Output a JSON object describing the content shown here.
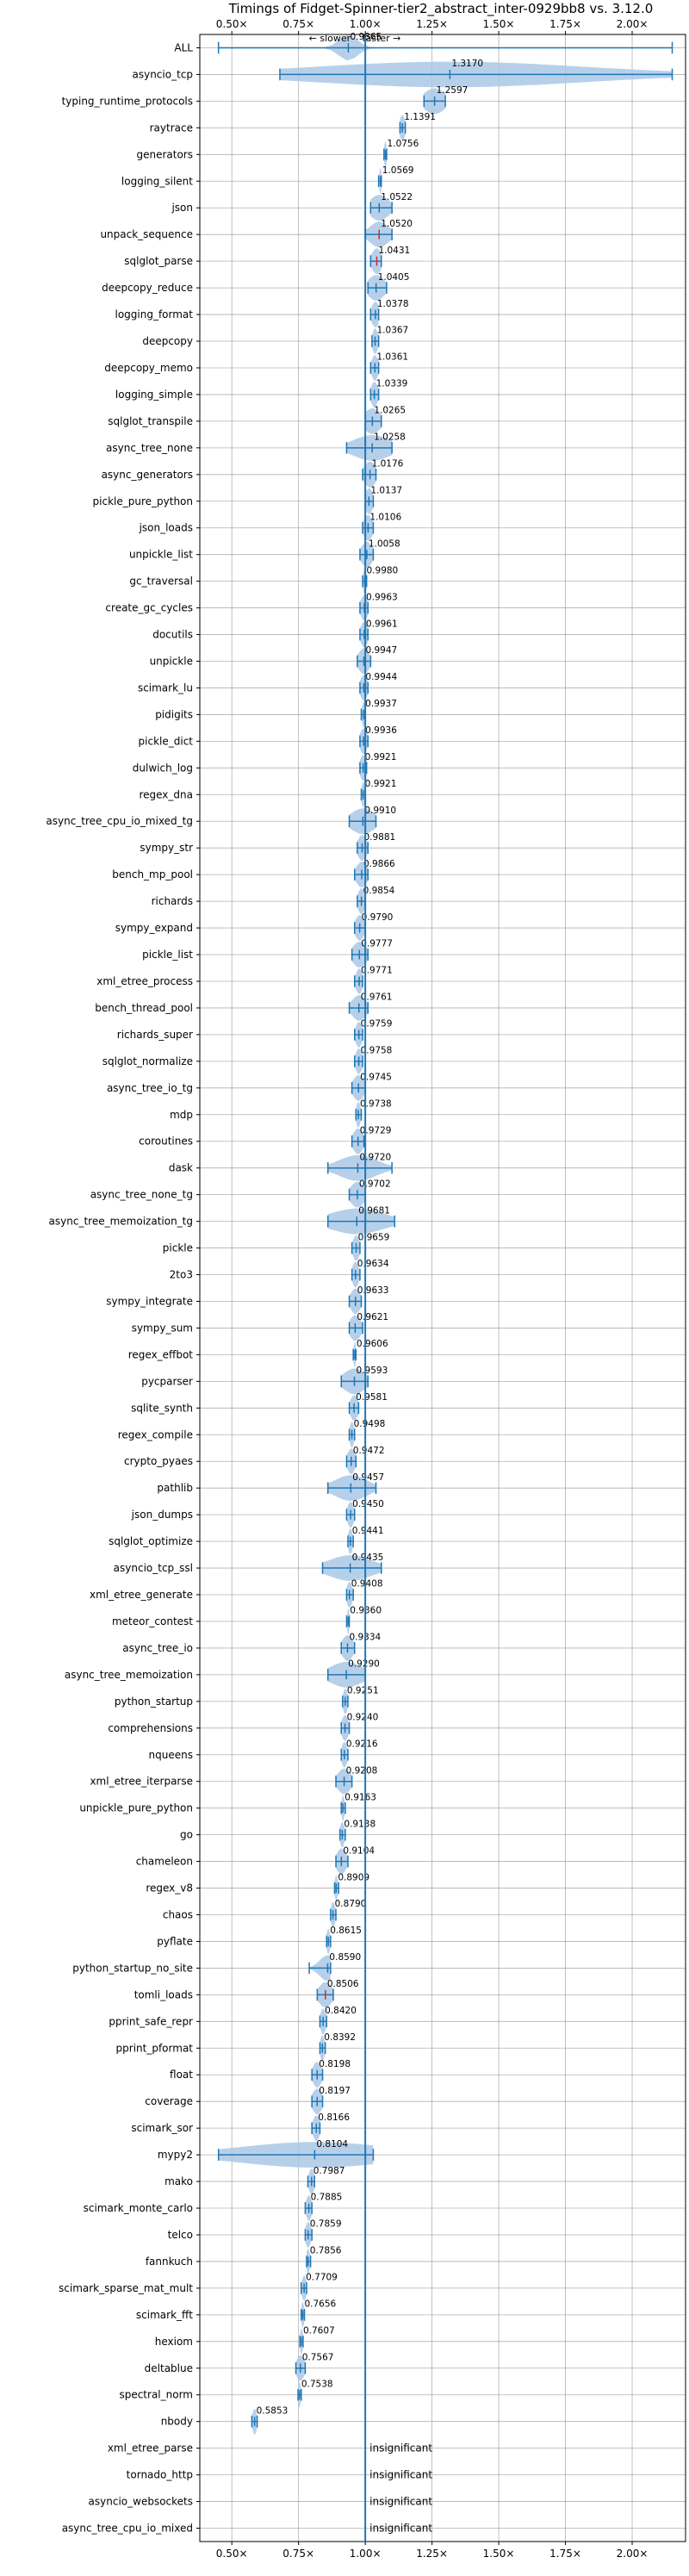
{
  "chart_data": {
    "type": "violin",
    "title": "Timings of Fidget-Spinner-tier2_abstract_inter-0929bb8 vs. 3.12.0",
    "direction_labels": {
      "slower": "← slower",
      "faster": "faster →"
    },
    "xlim": [
      0.38,
      2.2
    ],
    "x_ticks": [
      0.5,
      0.75,
      1.0,
      1.25,
      1.5,
      1.75,
      2.0
    ],
    "x_tick_labels": [
      "0.50×",
      "0.75×",
      "1.00×",
      "1.25×",
      "1.50×",
      "1.75×",
      "2.00×"
    ],
    "reference_line": 1.0,
    "insignificant_label": "insignificant",
    "colors": {
      "violin": "#aac8e6",
      "line": "#1f77b4",
      "grid": "#b0b0b0",
      "red": "#d62728"
    },
    "benchmarks": [
      {
        "name": "ALL",
        "value": 0.9365,
        "label": "0.9365",
        "min": 0.45,
        "max": 2.15,
        "spread": 0.035
      },
      {
        "name": "asyncio_tcp",
        "value": 1.317,
        "label": "1.3170",
        "min": 0.68,
        "max": 2.15,
        "spread": 0.5
      },
      {
        "name": "typing_runtime_protocols",
        "value": 1.2597,
        "label": "1.2597",
        "min": 1.22,
        "max": 1.3,
        "spread": 0.04
      },
      {
        "name": "raytrace",
        "value": 1.1391,
        "label": "1.1391",
        "min": 1.13,
        "max": 1.15,
        "spread": 0.01
      },
      {
        "name": "generators",
        "value": 1.0756,
        "label": "1.0756",
        "min": 1.07,
        "max": 1.08,
        "spread": 0.005
      },
      {
        "name": "logging_silent",
        "value": 1.0569,
        "label": "1.0569",
        "min": 1.05,
        "max": 1.06,
        "spread": 0.004
      },
      {
        "name": "json",
        "value": 1.0522,
        "label": "1.0522",
        "min": 1.02,
        "max": 1.1,
        "spread": 0.035
      },
      {
        "name": "unpack_sequence",
        "value": 1.052,
        "label": "1.0520",
        "min": 1.0,
        "max": 1.1,
        "spread": 0.035,
        "red": true
      },
      {
        "name": "sqlglot_parse",
        "value": 1.0431,
        "label": "1.0431",
        "min": 1.02,
        "max": 1.06,
        "spread": 0.018,
        "red": true
      },
      {
        "name": "deepcopy_reduce",
        "value": 1.0405,
        "label": "1.0405",
        "min": 1.01,
        "max": 1.08,
        "spread": 0.03
      },
      {
        "name": "logging_format",
        "value": 1.0378,
        "label": "1.0378",
        "min": 1.02,
        "max": 1.05,
        "spread": 0.014
      },
      {
        "name": "deepcopy",
        "value": 1.0367,
        "label": "1.0367",
        "min": 1.025,
        "max": 1.05,
        "spread": 0.01
      },
      {
        "name": "deepcopy_memo",
        "value": 1.0361,
        "label": "1.0361",
        "min": 1.02,
        "max": 1.05,
        "spread": 0.012
      },
      {
        "name": "logging_simple",
        "value": 1.0339,
        "label": "1.0339",
        "min": 1.02,
        "max": 1.05,
        "spread": 0.012
      },
      {
        "name": "sqlglot_transpile",
        "value": 1.0265,
        "label": "1.0265",
        "min": 1.0,
        "max": 1.06,
        "spread": 0.03
      },
      {
        "name": "async_tree_none",
        "value": 1.0258,
        "label": "1.0258",
        "min": 0.93,
        "max": 1.1,
        "spread": 0.07
      },
      {
        "name": "async_generators",
        "value": 1.0176,
        "label": "1.0176",
        "min": 0.99,
        "max": 1.04,
        "spread": 0.022
      },
      {
        "name": "pickle_pure_python",
        "value": 1.0137,
        "label": "1.0137",
        "min": 1.0,
        "max": 1.03,
        "spread": 0.014
      },
      {
        "name": "json_loads",
        "value": 1.0106,
        "label": "1.0106",
        "min": 0.99,
        "max": 1.03,
        "spread": 0.016
      },
      {
        "name": "unpickle_list",
        "value": 1.0058,
        "label": "1.0058",
        "min": 0.98,
        "max": 1.03,
        "spread": 0.02
      },
      {
        "name": "gc_traversal",
        "value": 0.998,
        "label": "0.9980",
        "min": 0.99,
        "max": 1.005,
        "spread": 0.006
      },
      {
        "name": "create_gc_cycles",
        "value": 0.9963,
        "label": "0.9963",
        "min": 0.98,
        "max": 1.01,
        "spread": 0.013
      },
      {
        "name": "docutils",
        "value": 0.9961,
        "label": "0.9961",
        "min": 0.98,
        "max": 1.01,
        "spread": 0.013
      },
      {
        "name": "unpickle",
        "value": 0.9947,
        "label": "0.9947",
        "min": 0.97,
        "max": 1.02,
        "spread": 0.02
      },
      {
        "name": "scimark_lu",
        "value": 0.9944,
        "label": "0.9944",
        "min": 0.98,
        "max": 1.01,
        "spread": 0.013
      },
      {
        "name": "pidigits",
        "value": 0.9937,
        "label": "0.9937",
        "min": 0.985,
        "max": 1.0,
        "spread": 0.006
      },
      {
        "name": "pickle_dict",
        "value": 0.9936,
        "label": "0.9936",
        "min": 0.98,
        "max": 1.01,
        "spread": 0.013
      },
      {
        "name": "dulwich_log",
        "value": 0.9921,
        "label": "0.9921",
        "min": 0.98,
        "max": 1.005,
        "spread": 0.012
      },
      {
        "name": "regex_dna",
        "value": 0.9921,
        "label": "0.9921",
        "min": 0.985,
        "max": 1.0,
        "spread": 0.006
      },
      {
        "name": "async_tree_cpu_io_mixed_tg",
        "value": 0.991,
        "label": "0.9910",
        "min": 0.94,
        "max": 1.04,
        "spread": 0.045
      },
      {
        "name": "sympy_str",
        "value": 0.9881,
        "label": "0.9881",
        "min": 0.97,
        "max": 1.01,
        "spread": 0.016
      },
      {
        "name": "bench_mp_pool",
        "value": 0.9866,
        "label": "0.9866",
        "min": 0.96,
        "max": 1.01,
        "spread": 0.02
      },
      {
        "name": "richards",
        "value": 0.9854,
        "label": "0.9854",
        "min": 0.97,
        "max": 1.0,
        "spread": 0.013
      },
      {
        "name": "sympy_expand",
        "value": 0.979,
        "label": "0.9790",
        "min": 0.96,
        "max": 1.0,
        "spread": 0.016
      },
      {
        "name": "pickle_list",
        "value": 0.9777,
        "label": "0.9777",
        "min": 0.95,
        "max": 1.01,
        "spread": 0.025
      },
      {
        "name": "xml_etree_process",
        "value": 0.9771,
        "label": "0.9771",
        "min": 0.96,
        "max": 0.99,
        "spread": 0.012
      },
      {
        "name": "bench_thread_pool",
        "value": 0.9761,
        "label": "0.9761",
        "min": 0.94,
        "max": 1.01,
        "spread": 0.025
      },
      {
        "name": "richards_super",
        "value": 0.9759,
        "label": "0.9759",
        "min": 0.96,
        "max": 0.99,
        "spread": 0.012
      },
      {
        "name": "sqlglot_normalize",
        "value": 0.9758,
        "label": "0.9758",
        "min": 0.96,
        "max": 0.99,
        "spread": 0.012
      },
      {
        "name": "async_tree_io_tg",
        "value": 0.9745,
        "label": "0.9745",
        "min": 0.95,
        "max": 1.0,
        "spread": 0.02
      },
      {
        "name": "mdp",
        "value": 0.9738,
        "label": "0.9738",
        "min": 0.965,
        "max": 0.985,
        "spread": 0.008
      },
      {
        "name": "coroutines",
        "value": 0.9729,
        "label": "0.9729",
        "min": 0.95,
        "max": 0.995,
        "spread": 0.018
      },
      {
        "name": "dask",
        "value": 0.972,
        "label": "0.9720",
        "min": 0.86,
        "max": 1.1,
        "spread": 0.07
      },
      {
        "name": "async_tree_none_tg",
        "value": 0.9702,
        "label": "0.9702",
        "min": 0.94,
        "max": 1.0,
        "spread": 0.025
      },
      {
        "name": "async_tree_memoization_tg",
        "value": 0.9681,
        "label": "0.9681",
        "min": 0.86,
        "max": 1.11,
        "spread": 0.1
      },
      {
        "name": "pickle",
        "value": 0.9659,
        "label": "0.9659",
        "min": 0.95,
        "max": 0.98,
        "spread": 0.012
      },
      {
        "name": "2to3",
        "value": 0.9634,
        "label": "0.9634",
        "min": 0.95,
        "max": 0.98,
        "spread": 0.012
      },
      {
        "name": "sympy_integrate",
        "value": 0.9633,
        "label": "0.9633",
        "min": 0.94,
        "max": 0.985,
        "spread": 0.018
      },
      {
        "name": "sympy_sum",
        "value": 0.9621,
        "label": "0.9621",
        "min": 0.94,
        "max": 0.99,
        "spread": 0.02
      },
      {
        "name": "regex_effbot",
        "value": 0.9606,
        "label": "0.9606",
        "min": 0.955,
        "max": 0.965,
        "spread": 0.004
      },
      {
        "name": "pycparser",
        "value": 0.9593,
        "label": "0.9593",
        "min": 0.91,
        "max": 1.01,
        "spread": 0.04
      },
      {
        "name": "sqlite_synth",
        "value": 0.9581,
        "label": "0.9581",
        "min": 0.94,
        "max": 0.975,
        "spread": 0.014
      },
      {
        "name": "regex_compile",
        "value": 0.9498,
        "label": "0.9498",
        "min": 0.94,
        "max": 0.96,
        "spread": 0.008
      },
      {
        "name": "crypto_pyaes",
        "value": 0.9472,
        "label": "0.9472",
        "min": 0.93,
        "max": 0.965,
        "spread": 0.014
      },
      {
        "name": "pathlib",
        "value": 0.9457,
        "label": "0.9457",
        "min": 0.86,
        "max": 1.04,
        "spread": 0.06
      },
      {
        "name": "json_dumps",
        "value": 0.945,
        "label": "0.9450",
        "min": 0.93,
        "max": 0.96,
        "spread": 0.012
      },
      {
        "name": "sqlglot_optimize",
        "value": 0.9441,
        "label": "0.9441",
        "min": 0.935,
        "max": 0.955,
        "spread": 0.008
      },
      {
        "name": "asyncio_tcp_ssl",
        "value": 0.9435,
        "label": "0.9435",
        "min": 0.84,
        "max": 1.06,
        "spread": 0.08
      },
      {
        "name": "xml_etree_generate",
        "value": 0.9408,
        "label": "0.9408",
        "min": 0.93,
        "max": 0.955,
        "spread": 0.01
      },
      {
        "name": "meteor_contest",
        "value": 0.936,
        "label": "0.9360",
        "min": 0.93,
        "max": 0.94,
        "spread": 0.004
      },
      {
        "name": "async_tree_io",
        "value": 0.9334,
        "label": "0.9334",
        "min": 0.91,
        "max": 0.96,
        "spread": 0.02
      },
      {
        "name": "async_tree_memoization",
        "value": 0.929,
        "label": "0.9290",
        "min": 0.86,
        "max": 1.0,
        "spread": 0.06
      },
      {
        "name": "python_startup",
        "value": 0.9251,
        "label": "0.9251",
        "min": 0.915,
        "max": 0.935,
        "spread": 0.008
      },
      {
        "name": "comprehensions",
        "value": 0.924,
        "label": "0.9240",
        "min": 0.91,
        "max": 0.94,
        "spread": 0.012
      },
      {
        "name": "nqueens",
        "value": 0.9216,
        "label": "0.9216",
        "min": 0.91,
        "max": 0.935,
        "spread": 0.01
      },
      {
        "name": "xml_etree_iterparse",
        "value": 0.9208,
        "label": "0.9208",
        "min": 0.89,
        "max": 0.95,
        "spread": 0.024
      },
      {
        "name": "unpickle_pure_python",
        "value": 0.9163,
        "label": "0.9163",
        "min": 0.91,
        "max": 0.925,
        "spread": 0.005
      },
      {
        "name": "go",
        "value": 0.9138,
        "label": "0.9138",
        "min": 0.905,
        "max": 0.925,
        "spread": 0.008
      },
      {
        "name": "chameleon",
        "value": 0.9104,
        "label": "0.9104",
        "min": 0.89,
        "max": 0.935,
        "spread": 0.018
      },
      {
        "name": "regex_v8",
        "value": 0.8909,
        "label": "0.8909",
        "min": 0.885,
        "max": 0.9,
        "spread": 0.005
      },
      {
        "name": "chaos",
        "value": 0.879,
        "label": "0.8790",
        "min": 0.87,
        "max": 0.89,
        "spread": 0.008
      },
      {
        "name": "pyflate",
        "value": 0.8615,
        "label": "0.8615",
        "min": 0.855,
        "max": 0.87,
        "spread": 0.006
      },
      {
        "name": "python_startup_no_site",
        "value": 0.859,
        "label": "0.8590",
        "min": 0.79,
        "max": 0.87,
        "spread": 0.03
      },
      {
        "name": "tomli_loads",
        "value": 0.8506,
        "label": "0.8506",
        "min": 0.82,
        "max": 0.88,
        "spread": 0.024,
        "red": true
      },
      {
        "name": "pprint_safe_repr",
        "value": 0.842,
        "label": "0.8420",
        "min": 0.83,
        "max": 0.855,
        "spread": 0.01
      },
      {
        "name": "pprint_pformat",
        "value": 0.8392,
        "label": "0.8392",
        "min": 0.83,
        "max": 0.85,
        "spread": 0.008
      },
      {
        "name": "float",
        "value": 0.8198,
        "label": "0.8198",
        "min": 0.8,
        "max": 0.84,
        "spread": 0.016
      },
      {
        "name": "coverage",
        "value": 0.8197,
        "label": "0.8197",
        "min": 0.8,
        "max": 0.84,
        "spread": 0.018
      },
      {
        "name": "scimark_sor",
        "value": 0.8166,
        "label": "0.8166",
        "min": 0.8,
        "max": 0.83,
        "spread": 0.012
      },
      {
        "name": "mypy2",
        "value": 0.8104,
        "label": "0.8104",
        "min": 0.45,
        "max": 1.03,
        "spread": 0.28
      },
      {
        "name": "mako",
        "value": 0.7987,
        "label": "0.7987",
        "min": 0.785,
        "max": 0.81,
        "spread": 0.01
      },
      {
        "name": "scimark_monte_carlo",
        "value": 0.7885,
        "label": "0.7885",
        "min": 0.775,
        "max": 0.8,
        "spread": 0.01
      },
      {
        "name": "telco",
        "value": 0.7859,
        "label": "0.7859",
        "min": 0.775,
        "max": 0.8,
        "spread": 0.01
      },
      {
        "name": "fannkuch",
        "value": 0.7856,
        "label": "0.7856",
        "min": 0.78,
        "max": 0.795,
        "spread": 0.006
      },
      {
        "name": "scimark_sparse_mat_mult",
        "value": 0.7709,
        "label": "0.7709",
        "min": 0.76,
        "max": 0.78,
        "spread": 0.008
      },
      {
        "name": "scimark_fft",
        "value": 0.7656,
        "label": "0.7656",
        "min": 0.76,
        "max": 0.772,
        "spread": 0.005
      },
      {
        "name": "hexiom",
        "value": 0.7607,
        "label": "0.7607",
        "min": 0.755,
        "max": 0.767,
        "spread": 0.005
      },
      {
        "name": "deltablue",
        "value": 0.7567,
        "label": "0.7567",
        "min": 0.74,
        "max": 0.775,
        "spread": 0.014
      },
      {
        "name": "spectral_norm",
        "value": 0.7538,
        "label": "0.7538",
        "min": 0.748,
        "max": 0.76,
        "spread": 0.004
      },
      {
        "name": "nbody",
        "value": 0.5853,
        "label": "0.5853",
        "min": 0.575,
        "max": 0.595,
        "spread": 0.008
      },
      {
        "name": "xml_etree_parse",
        "value": null,
        "label": null
      },
      {
        "name": "tornado_http",
        "value": null,
        "label": null
      },
      {
        "name": "asyncio_websockets",
        "value": null,
        "label": null
      },
      {
        "name": "async_tree_cpu_io_mixed",
        "value": null,
        "label": null
      }
    ]
  }
}
